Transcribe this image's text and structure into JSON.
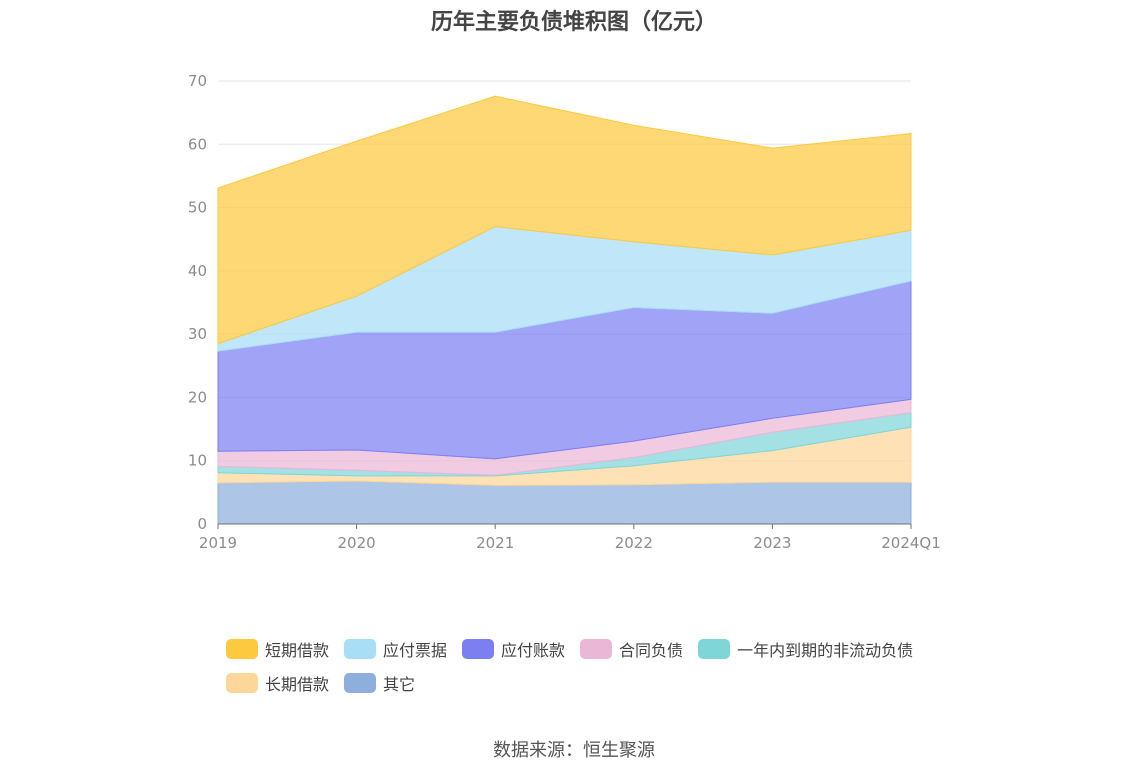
{
  "title": "历年主要负债堆积图（亿元）",
  "source": "数据来源：恒生聚源",
  "chart_data": {
    "type": "area",
    "stacked": true,
    "title": "历年主要负债堆积图（亿元）",
    "categories": [
      "2019",
      "2020",
      "2021",
      "2022",
      "2023",
      "2024Q1"
    ],
    "ylim": [
      0,
      70
    ],
    "yticks": [
      "0",
      "10",
      "20",
      "30",
      "40",
      "50",
      "60",
      "70"
    ],
    "grid": true,
    "legend_position": "bottom",
    "series": [
      {
        "name": "其它",
        "color": "#8eaedd",
        "values": [
          6.5,
          6.8,
          6.1,
          6.2,
          6.6,
          6.6
        ]
      },
      {
        "name": "长期借款",
        "color": "#fdd79a",
        "values": [
          1.6,
          0.8,
          1.5,
          3.0,
          5.0,
          8.7
        ]
      },
      {
        "name": "一年内到期的非流动负债",
        "color": "#7fd6d9",
        "values": [
          1.0,
          0.9,
          0.1,
          1.3,
          2.9,
          2.3
        ]
      },
      {
        "name": "合同负债",
        "color": "#eab7d7",
        "values": [
          2.4,
          3.2,
          2.6,
          2.6,
          2.2,
          2.1
        ]
      },
      {
        "name": "应付账款",
        "color": "#7b7ff2",
        "values": [
          15.8,
          18.6,
          20.0,
          21.1,
          16.6,
          18.7
        ]
      },
      {
        "name": "应付票据",
        "color": "#a8def6",
        "values": [
          1.2,
          5.7,
          16.7,
          10.4,
          9.2,
          8.0
        ]
      },
      {
        "name": "短期借款",
        "color": "#fcc93f",
        "values": [
          24.6,
          24.5,
          20.6,
          18.4,
          16.9,
          15.3
        ]
      }
    ]
  },
  "legend": [
    {
      "name": "短期借款",
      "color": "#fcc93f"
    },
    {
      "name": "应付票据",
      "color": "#a8def6"
    },
    {
      "name": "应付账款",
      "color": "#7b7ff2"
    },
    {
      "name": "合同负债",
      "color": "#eab7d7"
    },
    {
      "name": "一年内到期的非流动负债",
      "color": "#7fd6d9"
    },
    {
      "name": "长期借款",
      "color": "#fdd79a"
    },
    {
      "name": "其它",
      "color": "#8eaedd"
    }
  ]
}
